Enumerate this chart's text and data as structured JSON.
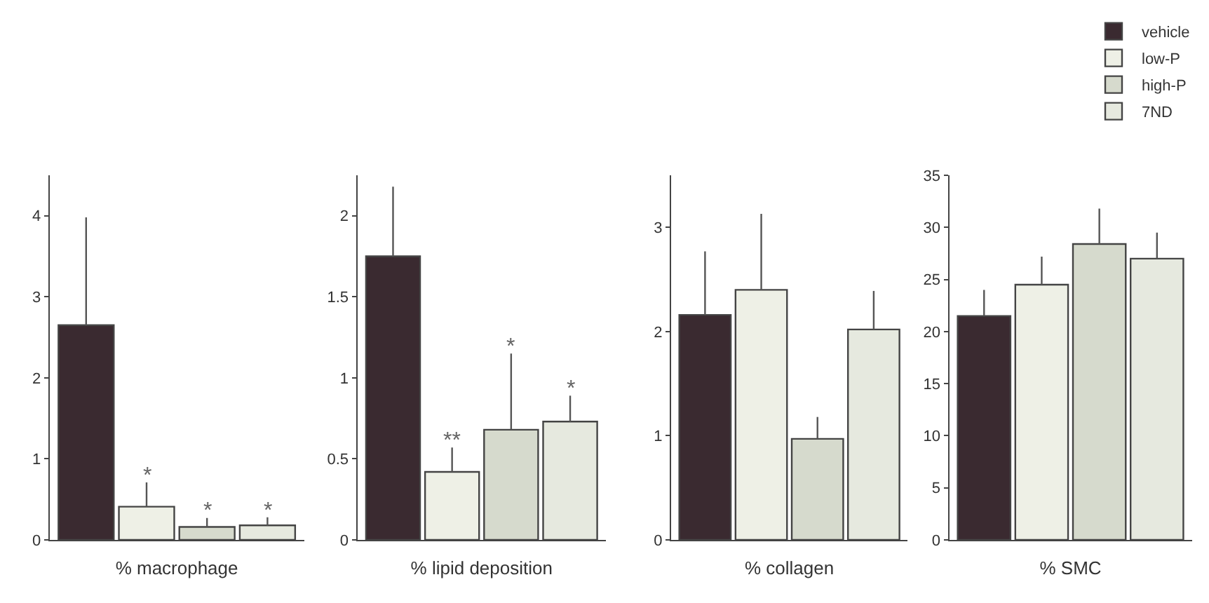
{
  "chart_data": [
    {
      "type": "bar",
      "xlabel": "% macrophage",
      "categories": [
        null
      ],
      "ylim": [
        0,
        4.5
      ],
      "yticks": [
        0,
        1,
        2,
        3,
        4
      ],
      "tick_labels": "y",
      "legend": false,
      "series": [
        {
          "color": "#3a2a30",
          "values": [
            2.65
          ],
          "errors": [
            [
              2.65,
              3.98
            ]
          ],
          "value_labels": [
            null
          ]
        },
        {
          "color": "#eef0e6",
          "values": [
            0.41
          ],
          "errors": [
            [
              0.41,
              0.71
            ]
          ],
          "value_labels": [
            "*"
          ]
        },
        {
          "color": "#d6dacd",
          "values": [
            0.16
          ],
          "errors": [
            [
              0.16,
              0.27
            ]
          ],
          "value_labels": [
            "*"
          ]
        },
        {
          "color": "#e6e9df",
          "values": [
            0.18
          ],
          "errors": [
            [
              0.18,
              0.28
            ]
          ],
          "value_labels": [
            "*"
          ]
        }
      ]
    },
    {
      "type": "bar",
      "xlabel": "% lipid deposition",
      "categories": [
        null
      ],
      "ylim": [
        0,
        2.25
      ],
      "yticks": [
        0,
        0.5,
        1,
        1.5,
        2
      ],
      "tick_labels": "y",
      "legend": false,
      "series": [
        {
          "color": "#3a2a30",
          "values": [
            1.75
          ],
          "errors": [
            [
              1.75,
              2.18
            ]
          ],
          "value_labels": [
            null
          ]
        },
        {
          "color": "#eef0e6",
          "values": [
            0.42
          ],
          "errors": [
            [
              0.42,
              0.57
            ]
          ],
          "value_labels": [
            "**"
          ]
        },
        {
          "color": "#d6dacd",
          "values": [
            0.68
          ],
          "errors": [
            [
              0.68,
              1.15
            ]
          ],
          "value_labels": [
            "*"
          ]
        },
        {
          "color": "#e6e9df",
          "values": [
            0.73
          ],
          "errors": [
            [
              0.73,
              0.89
            ]
          ],
          "value_labels": [
            "*"
          ]
        }
      ]
    },
    {
      "type": "bar",
      "xlabel": "% collagen",
      "categories": [
        null
      ],
      "ylim": [
        0,
        3.5
      ],
      "yticks": [
        0,
        1,
        2,
        3
      ],
      "tick_labels": "y",
      "legend": false,
      "series": [
        {
          "color": "#3a2a30",
          "values": [
            2.16
          ],
          "errors": [
            [
              2.16,
              2.77
            ]
          ]
        },
        {
          "color": "#eef0e6",
          "values": [
            2.4
          ],
          "errors": [
            [
              2.4,
              3.13
            ]
          ]
        },
        {
          "color": "#d6dacd",
          "values": [
            0.97
          ],
          "errors": [
            [
              0.97,
              1.18
            ]
          ]
        },
        {
          "color": "#e6e9df",
          "values": [
            2.02
          ],
          "errors": [
            [
              2.02,
              2.39
            ]
          ]
        }
      ]
    },
    {
      "type": "bar",
      "xlabel": "% SMC",
      "categories": [
        null
      ],
      "ylim": [
        0,
        35
      ],
      "yticks": [
        0,
        5,
        10,
        15,
        20,
        25,
        30,
        35
      ],
      "tick_labels": "y",
      "legend": "top right",
      "series": [
        {
          "name": "vehicle",
          "color": "#3a2a30",
          "values": [
            21.5
          ],
          "errors": [
            [
              21.5,
              24
            ]
          ]
        },
        {
          "name": "low-P",
          "color": "#eef0e6",
          "values": [
            24.5
          ],
          "errors": [
            [
              24.5,
              27.2
            ]
          ]
        },
        {
          "name": "high-P",
          "color": "#d6dacd",
          "values": [
            28.4
          ],
          "errors": [
            [
              28.4,
              31.8
            ]
          ]
        },
        {
          "name": "7ND",
          "color": "#e6e9df",
          "values": [
            27
          ],
          "errors": [
            [
              27,
              29.5
            ]
          ]
        }
      ]
    }
  ]
}
